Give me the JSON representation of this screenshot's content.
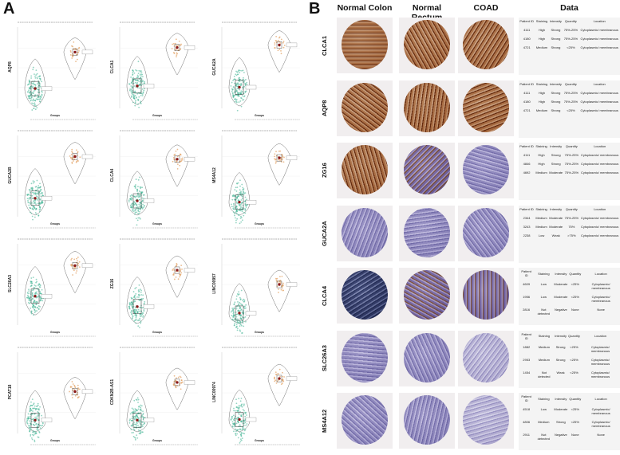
{
  "figure": {
    "panel_a_label": "A",
    "panel_b_label": "B"
  },
  "panel_a": {
    "group_axis_title": "Groups",
    "plots": [
      {
        "gene": "AQP8",
        "normal_median": 2.8,
        "tumor_median": 8.4
      },
      {
        "gene": "CLCA1",
        "normal_median": 3.2,
        "tumor_median": 9.1
      },
      {
        "gene": "GUCA2A",
        "normal_median": 3.0,
        "tumor_median": 9.5
      },
      {
        "gene": "GUCA2B",
        "normal_median": 2.6,
        "tumor_median": 9.0
      },
      {
        "gene": "CLCA4",
        "normal_median": 2.2,
        "tumor_median": 8.6
      },
      {
        "gene": "MS4A12",
        "normal_median": 2.0,
        "tumor_median": 8.8
      },
      {
        "gene": "SLC26A3",
        "normal_median": 4.2,
        "tumor_median": 8.9
      },
      {
        "gene": "ZG16",
        "normal_median": 2.6,
        "tumor_median": 8.2
      },
      {
        "gene": "LINC00957",
        "normal_median": 1.6,
        "tumor_median": 6.0
      },
      {
        "gene": "PCAT18",
        "normal_median": 1.8,
        "tumor_median": 6.2
      },
      {
        "gene": "CDKN2B-AS1",
        "normal_median": 1.8,
        "tumor_median": 7.6
      },
      {
        "gene": "LINC00974",
        "normal_median": 1.9,
        "tumor_median": 8.2
      }
    ]
  },
  "panel_b": {
    "column_headers": [
      "Normal Colon",
      "Normal Rectum",
      "COAD",
      "Data"
    ],
    "table_headers": [
      "Patient ID",
      "Staining",
      "Intensity",
      "Quantity",
      "Location"
    ],
    "rows": [
      {
        "gene": "CLCA1",
        "stain": [
          "strong",
          "strong",
          "strong"
        ],
        "entries": [
          [
            "4111",
            "High",
            "Strong",
            "75%-25%",
            "Cytoplasmic/ membranous"
          ],
          [
            "4180",
            "High",
            "Strong",
            "75%-25%",
            "Cytoplasmic/ membranous"
          ],
          [
            "4721",
            "Medium",
            "Strong",
            "<25%",
            "Cytoplasmic/ membranous"
          ]
        ]
      },
      {
        "gene": "AQP8",
        "stain": [
          "strong",
          "strong",
          "strong"
        ],
        "entries": [
          [
            "4111",
            "High",
            "Strong",
            "75%-25%",
            "Cytoplasmic/ membranous"
          ],
          [
            "4180",
            "High",
            "Strong",
            "75%-25%",
            "Cytoplasmic/ membranous"
          ],
          [
            "4721",
            "Medium",
            "Strong",
            "<25%",
            "Cytoplasmic/ membranous"
          ]
        ]
      },
      {
        "gene": "ZG16",
        "stain": [
          "strong",
          "medium",
          "light"
        ],
        "entries": [
          [
            "4111",
            "High",
            "Strong",
            "75%-25%",
            "Cytoplasmic/ membranous"
          ],
          [
            "4846",
            "High",
            "Strong",
            "75%-25%",
            "Cytoplasmic/ membranous"
          ],
          [
            "4692",
            "Medium",
            "Moderate",
            "75%-25%",
            "Cytoplasmic/ membranous"
          ]
        ]
      },
      {
        "gene": "GUCA2A",
        "stain": [
          "light",
          "light",
          "light"
        ],
        "entries": [
          [
            "2344",
            "Medium",
            "Moderate",
            "75%-25%",
            "Cytoplasmic/ membranous"
          ],
          [
            "3243",
            "Medium",
            "Moderate",
            "75%",
            "Cytoplasmic/ membranous"
          ],
          [
            "2238",
            "Low",
            "Weak",
            ">75%",
            "Cytoplasmic/ membranous"
          ]
        ]
      },
      {
        "gene": "CLCA4",
        "stain": [
          "dark",
          "medium",
          "medium"
        ],
        "entries": [
          [
            "4609",
            "Low",
            "Moderate",
            "<25%",
            "Cytoplasmic/ membranous"
          ],
          [
            "1956",
            "Low",
            "Moderate",
            "<25%",
            "Cytoplasmic/ membranous"
          ],
          [
            "2816",
            "Not detected",
            "Negative",
            "None",
            "None"
          ]
        ]
      },
      {
        "gene": "SLC26A3",
        "stain": [
          "light",
          "light",
          "faint"
        ],
        "entries": [
          [
            "1882",
            "Medium",
            "Strong",
            "<25%",
            "Cytoplasmic/ membranous"
          ],
          [
            "2953",
            "Medium",
            "Strong",
            "<25%",
            "Cytoplasmic/ membranous"
          ],
          [
            "1454",
            "Not detected",
            "Weak",
            "<25%",
            "Cytoplasmic/ membranous"
          ]
        ]
      },
      {
        "gene": "MS4A12",
        "stain": [
          "light",
          "light",
          "faint"
        ],
        "entries": [
          [
            "4518",
            "Low",
            "Moderate",
            "<25%",
            "Cytoplasmic/ membranous"
          ],
          [
            "4806",
            "Medium",
            "Strong",
            "<25%",
            "Cytoplasmic/ membranous"
          ],
          [
            "2911",
            "Not detected",
            "Negative",
            "None",
            "None"
          ]
        ]
      }
    ]
  },
  "colors": {
    "normal_fill": "#3bb08f",
    "normal_point": "#2e9c79",
    "tumor_outline": "#d88c4a",
    "tumor_point": "#e3a060",
    "median_point": "#8b1a1a",
    "ihc_brown_dark": "#7a3f1c",
    "ihc_brown_mid": "#a8703f",
    "ihc_blue": "#8b86bf"
  }
}
